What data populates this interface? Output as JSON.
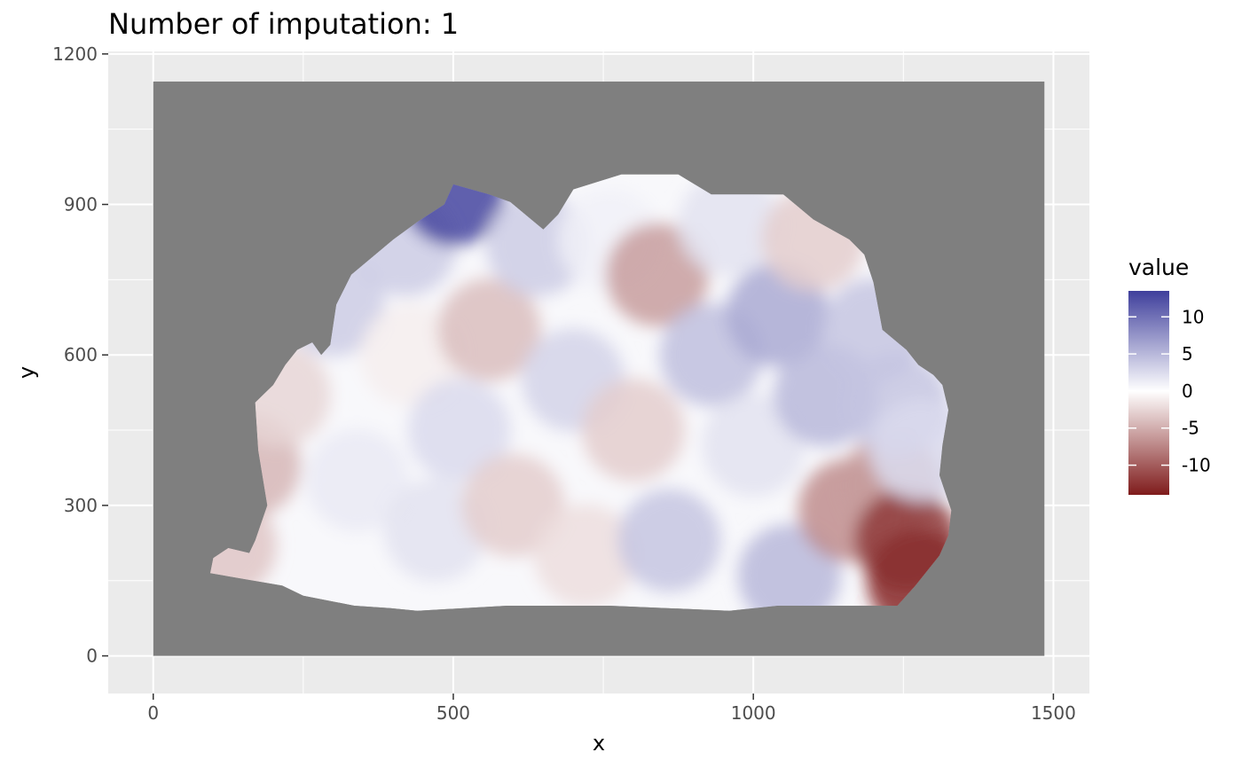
{
  "chart_data": {
    "type": "heatmap",
    "title": "Number of imputation: 1",
    "xlabel": "x",
    "ylabel": "y",
    "xlim": [
      -75,
      1560
    ],
    "ylim": [
      -75,
      1205
    ],
    "x_ticks": [
      0,
      500,
      1000,
      1500
    ],
    "x_tick_labels": [
      "0",
      "500",
      "1000",
      "1500"
    ],
    "y_ticks": [
      0,
      300,
      600,
      900,
      1200
    ],
    "y_tick_labels": [
      "0",
      "300",
      "600",
      "900",
      "1200"
    ],
    "na_region": {
      "x": [
        0,
        1485
      ],
      "y": [
        0,
        1145
      ],
      "color": "#7f7f7f"
    },
    "grid": true,
    "panel_background": "#ebebeb",
    "legend": {
      "title": "value",
      "position": "right",
      "breaks": [
        10,
        5,
        0,
        -5,
        -10
      ],
      "break_labels": [
        "10",
        "5",
        "0",
        "-5",
        "-10"
      ],
      "limits": [
        -14,
        13.5
      ],
      "colors": {
        "high": "#3f3f9c",
        "mid": "#ffffff",
        "low": "#7f1b1b"
      }
    },
    "tissue_outline": [
      [
        95,
        165
      ],
      [
        100,
        195
      ],
      [
        125,
        215
      ],
      [
        160,
        205
      ],
      [
        170,
        230
      ],
      [
        190,
        300
      ],
      [
        175,
        410
      ],
      [
        170,
        505
      ],
      [
        200,
        540
      ],
      [
        220,
        580
      ],
      [
        240,
        610
      ],
      [
        265,
        625
      ],
      [
        280,
        600
      ],
      [
        295,
        620
      ],
      [
        305,
        700
      ],
      [
        330,
        760
      ],
      [
        360,
        790
      ],
      [
        400,
        830
      ],
      [
        440,
        865
      ],
      [
        485,
        900
      ],
      [
        500,
        940
      ],
      [
        560,
        920
      ],
      [
        595,
        905
      ],
      [
        625,
        875
      ],
      [
        650,
        850
      ],
      [
        675,
        880
      ],
      [
        700,
        930
      ],
      [
        780,
        960
      ],
      [
        875,
        960
      ],
      [
        930,
        920
      ],
      [
        1050,
        920
      ],
      [
        1100,
        870
      ],
      [
        1160,
        830
      ],
      [
        1185,
        800
      ],
      [
        1200,
        745
      ],
      [
        1215,
        650
      ],
      [
        1255,
        610
      ],
      [
        1275,
        580
      ],
      [
        1300,
        560
      ],
      [
        1315,
        540
      ],
      [
        1325,
        490
      ],
      [
        1315,
        420
      ],
      [
        1310,
        360
      ],
      [
        1330,
        290
      ],
      [
        1325,
        240
      ],
      [
        1310,
        200
      ],
      [
        1270,
        140
      ],
      [
        1240,
        100
      ],
      [
        1040,
        100
      ],
      [
        960,
        90
      ],
      [
        760,
        100
      ],
      [
        590,
        100
      ],
      [
        440,
        90
      ],
      [
        395,
        95
      ],
      [
        335,
        100
      ],
      [
        250,
        120
      ],
      [
        215,
        140
      ]
    ],
    "series": [
      {
        "name": "value",
        "points": [
          {
            "x": 120,
            "y": 220,
            "value": -3.5
          },
          {
            "x": 160,
            "y": 380,
            "value": -4.5
          },
          {
            "x": 210,
            "y": 520,
            "value": -2.5
          },
          {
            "x": 300,
            "y": 700,
            "value": 3.5
          },
          {
            "x": 340,
            "y": 350,
            "value": 1.5
          },
          {
            "x": 420,
            "y": 820,
            "value": 3.5
          },
          {
            "x": 430,
            "y": 600,
            "value": -1
          },
          {
            "x": 470,
            "y": 250,
            "value": 2
          },
          {
            "x": 500,
            "y": 920,
            "value": 13
          },
          {
            "x": 510,
            "y": 450,
            "value": 2.5
          },
          {
            "x": 560,
            "y": 650,
            "value": -4
          },
          {
            "x": 600,
            "y": 300,
            "value": -3
          },
          {
            "x": 640,
            "y": 820,
            "value": 3.5
          },
          {
            "x": 700,
            "y": 550,
            "value": 3
          },
          {
            "x": 720,
            "y": 200,
            "value": -2
          },
          {
            "x": 760,
            "y": 830,
            "value": 1
          },
          {
            "x": 800,
            "y": 450,
            "value": -3
          },
          {
            "x": 840,
            "y": 760,
            "value": -6
          },
          {
            "x": 860,
            "y": 230,
            "value": 4
          },
          {
            "x": 930,
            "y": 600,
            "value": 4.5
          },
          {
            "x": 960,
            "y": 860,
            "value": 2
          },
          {
            "x": 1000,
            "y": 420,
            "value": 2
          },
          {
            "x": 1040,
            "y": 680,
            "value": 6
          },
          {
            "x": 1060,
            "y": 160,
            "value": 5
          },
          {
            "x": 1100,
            "y": 830,
            "value": -3
          },
          {
            "x": 1120,
            "y": 520,
            "value": 5
          },
          {
            "x": 1160,
            "y": 290,
            "value": -7
          },
          {
            "x": 1200,
            "y": 650,
            "value": 4
          },
          {
            "x": 1230,
            "y": 340,
            "value": -6
          },
          {
            "x": 1240,
            "y": 500,
            "value": 4
          },
          {
            "x": 1255,
            "y": 230,
            "value": -12
          },
          {
            "x": 1275,
            "y": 150,
            "value": -13
          },
          {
            "x": 1280,
            "y": 410,
            "value": 2.5
          }
        ]
      }
    ]
  }
}
